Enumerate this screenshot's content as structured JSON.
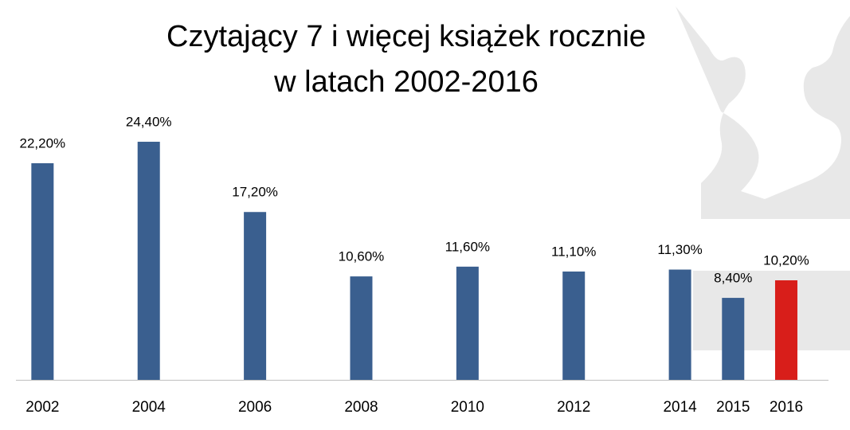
{
  "chart_data": {
    "type": "bar",
    "title": [
      "Czytający 7 i więcej książek rocznie",
      "w latach 2002-2016"
    ],
    "x": [
      2002,
      2004,
      2006,
      2008,
      2010,
      2012,
      2014,
      2015,
      2016
    ],
    "values": [
      22.2,
      24.4,
      17.2,
      10.6,
      11.6,
      11.1,
      11.3,
      8.4,
      10.2
    ],
    "value_labels": [
      "22,20%",
      "24,40%",
      "17,20%",
      "10,60%",
      "11,60%",
      "11,10%",
      "11,30%",
      "8,40%",
      "10,20%"
    ],
    "colors": [
      "#3a5f8f",
      "#3a5f8f",
      "#3a5f8f",
      "#3a5f8f",
      "#3a5f8f",
      "#3a5f8f",
      "#3a5f8f",
      "#3a5f8f",
      "#d81e1a"
    ],
    "xlim": [
      2001.2,
      2017.2
    ],
    "ylim": [
      0,
      30
    ]
  }
}
